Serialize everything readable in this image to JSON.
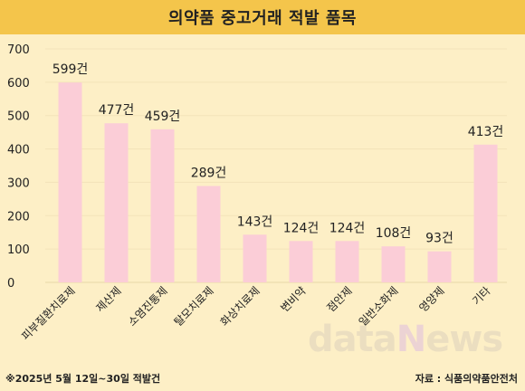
{
  "header": {
    "title": "의약품 중고거래 적발 품목"
  },
  "footer": {
    "note": "※2025년 5월 12일~30일 적발건",
    "source": "자료 : 식품의약품안전처"
  },
  "watermark": {
    "text_a": "data",
    "text_b": "N",
    "text_c": "ews"
  },
  "colors": {
    "background": "#fdefc6",
    "title_bar": "#f4c54b",
    "bar": "#fbcdd7",
    "grid": "#f3e3b9"
  },
  "chart_data": {
    "type": "bar",
    "categories": [
      "피부질환치료제",
      "제산제",
      "소염진통제",
      "탈모치료제",
      "화상치료제",
      "변비약",
      "점안제",
      "일반소화제",
      "영양제",
      "기타"
    ],
    "values": [
      599,
      477,
      459,
      289,
      143,
      124,
      124,
      108,
      93,
      413
    ],
    "data_labels": [
      "599건",
      "477건",
      "459건",
      "289건",
      "143건",
      "124건",
      "124건",
      "108건",
      "93건",
      "413건"
    ],
    "y_ticks": [
      "0",
      "100",
      "200",
      "300",
      "400",
      "500",
      "600",
      "700"
    ],
    "ylim": [
      0,
      700
    ],
    "grid": true,
    "legend": "none"
  }
}
